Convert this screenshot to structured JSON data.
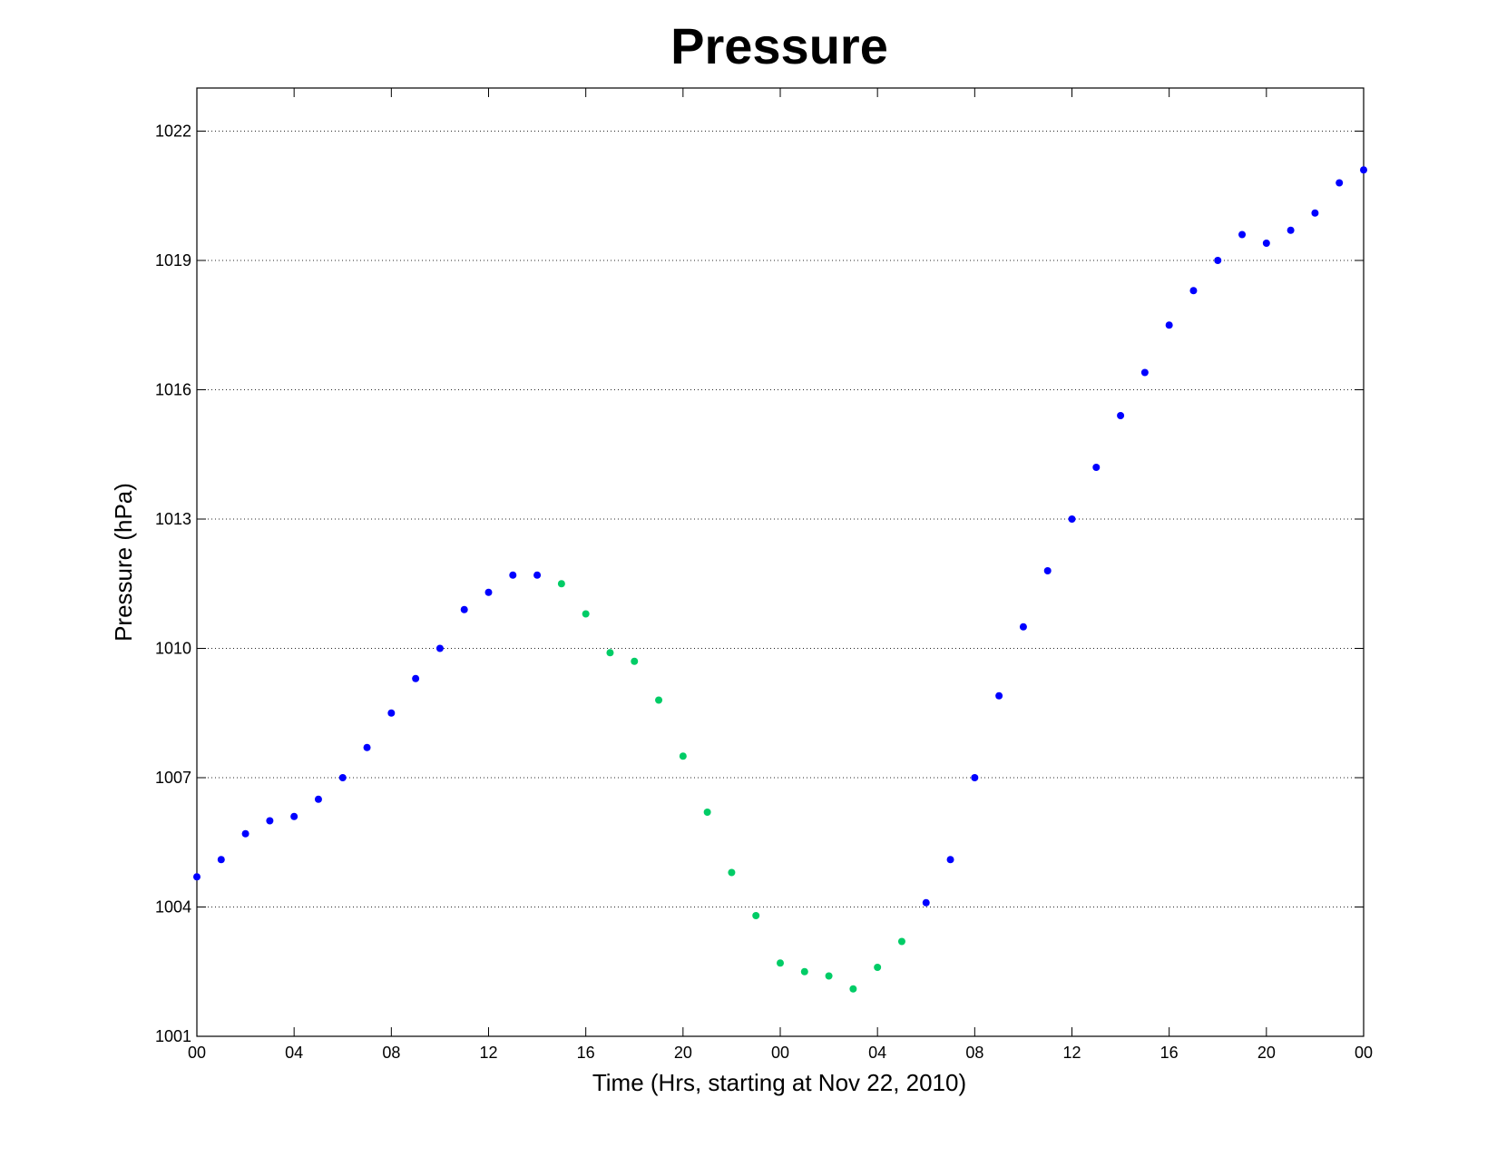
{
  "chart_data": {
    "type": "scatter",
    "title": "Pressure",
    "xlabel": "Time (Hrs, starting at Nov 22, 2010)",
    "ylabel": "Pressure (hPa)",
    "xlim": [
      "2010-11-22 00:00",
      "2010-11-24 00:00"
    ],
    "ylim": [
      1001,
      1023
    ],
    "yticks": [
      1001,
      1004,
      1007,
      1010,
      1013,
      1016,
      1019,
      1022
    ],
    "xtick_times": [
      "2010-11-22 00:00",
      "2010-11-22 04:00",
      "2010-11-22 08:00",
      "2010-11-22 12:00",
      "2010-11-22 16:00",
      "2010-11-22 20:00",
      "2010-11-23 00:00",
      "2010-11-23 04:00",
      "2010-11-23 08:00",
      "2010-11-23 12:00",
      "2010-11-23 16:00",
      "2010-11-23 20:00",
      "2010-11-24 00:00"
    ],
    "xtick_labels": [
      "00",
      "04",
      "08",
      "12",
      "16",
      "20",
      "00",
      "04",
      "08",
      "12",
      "16",
      "20",
      "00"
    ],
    "grid": "horizontal dotted",
    "colors": {
      "blue": "#0000ff",
      "green": "#00cc66"
    },
    "points": [
      {
        "t": "2010-11-22 00:00",
        "p": 1004.7,
        "c": "blue"
      },
      {
        "t": "2010-11-22 01:00",
        "p": 1005.1,
        "c": "blue"
      },
      {
        "t": "2010-11-22 02:00",
        "p": 1005.7,
        "c": "blue"
      },
      {
        "t": "2010-11-22 03:00",
        "p": 1006.0,
        "c": "blue"
      },
      {
        "t": "2010-11-22 04:00",
        "p": 1006.1,
        "c": "blue"
      },
      {
        "t": "2010-11-22 05:00",
        "p": 1006.5,
        "c": "blue"
      },
      {
        "t": "2010-11-22 06:00",
        "p": 1007.0,
        "c": "blue"
      },
      {
        "t": "2010-11-22 07:00",
        "p": 1007.7,
        "c": "blue"
      },
      {
        "t": "2010-11-22 08:00",
        "p": 1008.5,
        "c": "blue"
      },
      {
        "t": "2010-11-22 09:00",
        "p": 1009.3,
        "c": "blue"
      },
      {
        "t": "2010-11-22 10:00",
        "p": 1010.0,
        "c": "blue"
      },
      {
        "t": "2010-11-22 11:00",
        "p": 1010.9,
        "c": "blue"
      },
      {
        "t": "2010-11-22 12:00",
        "p": 1011.3,
        "c": "blue"
      },
      {
        "t": "2010-11-22 13:00",
        "p": 1011.7,
        "c": "blue"
      },
      {
        "t": "2010-11-22 14:00",
        "p": 1011.7,
        "c": "blue"
      },
      {
        "t": "2010-11-22 15:00",
        "p": 1011.5,
        "c": "green"
      },
      {
        "t": "2010-11-22 16:00",
        "p": 1010.8,
        "c": "green"
      },
      {
        "t": "2010-11-22 17:00",
        "p": 1009.9,
        "c": "green"
      },
      {
        "t": "2010-11-22 18:00",
        "p": 1009.7,
        "c": "green"
      },
      {
        "t": "2010-11-22 19:00",
        "p": 1008.8,
        "c": "green"
      },
      {
        "t": "2010-11-22 20:00",
        "p": 1007.5,
        "c": "green"
      },
      {
        "t": "2010-11-22 21:00",
        "p": 1006.2,
        "c": "green"
      },
      {
        "t": "2010-11-22 22:00",
        "p": 1004.8,
        "c": "green"
      },
      {
        "t": "2010-11-22 23:00",
        "p": 1003.8,
        "c": "green"
      },
      {
        "t": "2010-11-23 00:00",
        "p": 1002.7,
        "c": "green"
      },
      {
        "t": "2010-11-23 01:00",
        "p": 1002.5,
        "c": "green"
      },
      {
        "t": "2010-11-23 02:00",
        "p": 1002.4,
        "c": "green"
      },
      {
        "t": "2010-11-23 03:00",
        "p": 1002.1,
        "c": "green"
      },
      {
        "t": "2010-11-23 04:00",
        "p": 1002.6,
        "c": "green"
      },
      {
        "t": "2010-11-23 05:00",
        "p": 1003.2,
        "c": "green"
      },
      {
        "t": "2010-11-23 06:00",
        "p": 1004.1,
        "c": "blue"
      },
      {
        "t": "2010-11-23 07:00",
        "p": 1005.1,
        "c": "blue"
      },
      {
        "t": "2010-11-23 08:00",
        "p": 1007.0,
        "c": "blue"
      },
      {
        "t": "2010-11-23 09:00",
        "p": 1008.9,
        "c": "blue"
      },
      {
        "t": "2010-11-23 10:00",
        "p": 1010.5,
        "c": "blue"
      },
      {
        "t": "2010-11-23 11:00",
        "p": 1011.8,
        "c": "blue"
      },
      {
        "t": "2010-11-23 12:00",
        "p": 1013.0,
        "c": "blue"
      },
      {
        "t": "2010-11-23 13:00",
        "p": 1014.2,
        "c": "blue"
      },
      {
        "t": "2010-11-23 14:00",
        "p": 1015.4,
        "c": "blue"
      },
      {
        "t": "2010-11-23 15:00",
        "p": 1016.4,
        "c": "blue"
      },
      {
        "t": "2010-11-23 16:00",
        "p": 1017.5,
        "c": "blue"
      },
      {
        "t": "2010-11-23 17:00",
        "p": 1018.3,
        "c": "blue"
      },
      {
        "t": "2010-11-23 18:00",
        "p": 1019.0,
        "c": "blue"
      },
      {
        "t": "2010-11-23 19:00",
        "p": 1019.6,
        "c": "blue"
      },
      {
        "t": "2010-11-23 20:00",
        "p": 1019.4,
        "c": "blue"
      },
      {
        "t": "2010-11-23 21:00",
        "p": 1019.7,
        "c": "blue"
      },
      {
        "t": "2010-11-23 22:00",
        "p": 1020.1,
        "c": "blue"
      },
      {
        "t": "2010-11-23 23:00",
        "p": 1020.8,
        "c": "blue"
      },
      {
        "t": "2010-11-24 00:00",
        "p": 1021.1,
        "c": "blue"
      }
    ]
  }
}
